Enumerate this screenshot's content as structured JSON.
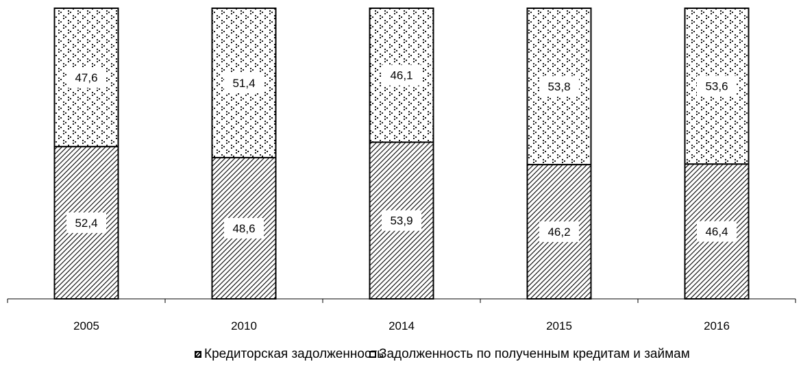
{
  "chart_data": {
    "type": "bar",
    "stacked": true,
    "categories": [
      "2005",
      "2010",
      "2014",
      "2015",
      "2016"
    ],
    "series": [
      {
        "name": "Кредиторская задолженность",
        "values": [
          52.4,
          48.6,
          53.9,
          46.2,
          46.4
        ],
        "labels": [
          "52,4",
          "48,6",
          "53,9",
          "46,2",
          "46,4"
        ],
        "pattern": "diagonal-hatch"
      },
      {
        "name": "Задолженность по полученным кредитам и займам",
        "values": [
          47.6,
          51.4,
          46.1,
          53.8,
          53.6
        ],
        "labels": [
          "47,6",
          "51,4",
          "46,1",
          "53,8",
          "53,6"
        ],
        "pattern": "dotted"
      }
    ],
    "title": "",
    "xlabel": "",
    "ylabel": "",
    "ylim": [
      0,
      100
    ],
    "grid": false,
    "legend_position": "bottom",
    "colors": {
      "stroke": "#000000",
      "fill": "#ffffff"
    }
  }
}
